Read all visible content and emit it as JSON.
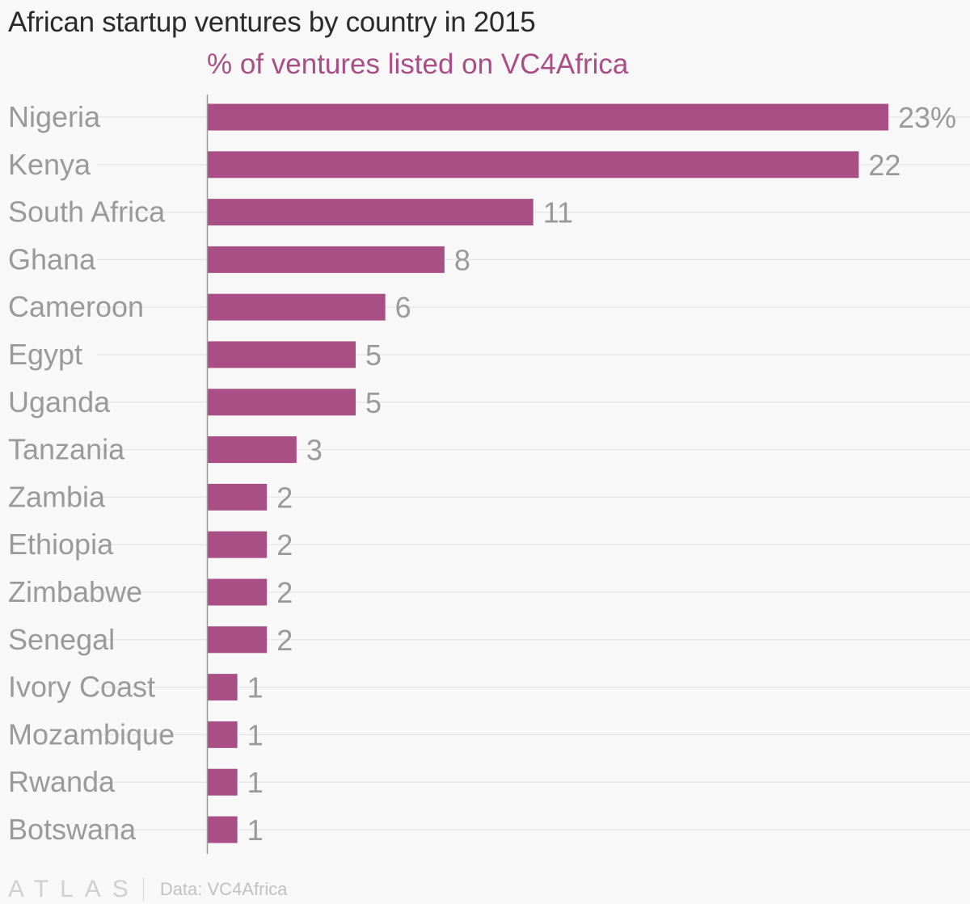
{
  "header": {
    "title": "African startup ventures by country in 2015",
    "subtitle": "% of ventures listed on VC4Africa"
  },
  "chart_data": {
    "type": "bar",
    "orientation": "horizontal",
    "categories": [
      "Nigeria",
      "Kenya",
      "South Africa",
      "Ghana",
      "Cameroon",
      "Egypt",
      "Uganda",
      "Tanzania",
      "Zambia",
      "Ethiopia",
      "Zimbabwe",
      "Senegal",
      "Ivory Coast",
      "Mozambique",
      "Rwanda",
      "Botswana"
    ],
    "values": [
      23,
      22,
      11,
      8,
      6,
      5,
      5,
      3,
      2,
      2,
      2,
      2,
      1,
      1,
      1,
      1
    ],
    "value_labels": [
      "23%",
      "22",
      "11",
      "8",
      "6",
      "5",
      "5",
      "3",
      "2",
      "2",
      "2",
      "2",
      "1",
      "1",
      "1",
      "1"
    ],
    "title": "African startup ventures by country in 2015",
    "subtitle": "% of ventures listed on VC4Africa",
    "xlim": [
      0,
      23
    ],
    "grid": true,
    "colors": {
      "bar": "#a94f86",
      "category_label": "#9a9a9a",
      "value_label": "#9a9a9a",
      "gridline": "#e8e8e8",
      "axis": "#9a9a9a"
    }
  },
  "footer": {
    "logo": "ATLAS",
    "source": "Data: VC4Africa"
  }
}
